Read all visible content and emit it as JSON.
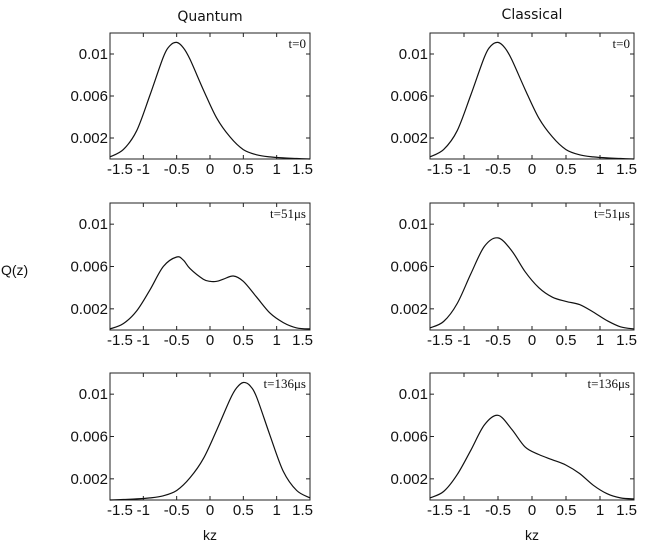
{
  "figure": {
    "ylabel": "Q(z)",
    "xlabel": "kz",
    "column_titles": [
      "Quantum",
      "Classical"
    ]
  },
  "chart_data": [
    {
      "type": "line",
      "column_title": "Quantum",
      "annotation": "t=0",
      "xlim": [
        -1.5,
        1.5
      ],
      "ylim": [
        0,
        0.012
      ],
      "xticks": [
        -1.5,
        -1,
        -0.5,
        0,
        0.5,
        1,
        1.5
      ],
      "xtick_labels": [
        "-1.5",
        "-1",
        "-0.5",
        "0",
        "0.5",
        "1",
        "1.5"
      ],
      "yticks": [
        0.002,
        0.006,
        0.01
      ],
      "ytick_labels": [
        "0.002",
        "0.006",
        "0.01"
      ],
      "x": [
        -1.5,
        -1.3,
        -1.1,
        -0.9,
        -0.7,
        -0.6,
        -0.5,
        -0.4,
        -0.3,
        -0.1,
        0.1,
        0.3,
        0.5,
        0.7,
        0.9,
        1.1,
        1.3,
        1.5
      ],
      "y": [
        0.0002,
        0.0009,
        0.0027,
        0.0061,
        0.0097,
        0.0108,
        0.0111,
        0.0106,
        0.0095,
        0.0066,
        0.0039,
        0.0021,
        0.0009,
        0.0004,
        0.0002,
        0.0001,
        5e-05,
        0.0
      ]
    },
    {
      "type": "line",
      "column_title": "Classical",
      "annotation": "t=0",
      "xlim": [
        -1.5,
        1.5
      ],
      "ylim": [
        0,
        0.012
      ],
      "xticks": [
        -1.5,
        -1,
        -0.5,
        0,
        0.5,
        1,
        1.5
      ],
      "xtick_labels": [
        "-1.5",
        "-1",
        "-0.5",
        "0",
        "0.5",
        "1",
        "1.5"
      ],
      "yticks": [
        0.002,
        0.006,
        0.01
      ],
      "ytick_labels": [
        "0.002",
        "0.006",
        "0.01"
      ],
      "x": [
        -1.5,
        -1.3,
        -1.1,
        -0.9,
        -0.7,
        -0.6,
        -0.5,
        -0.4,
        -0.3,
        -0.1,
        0.1,
        0.3,
        0.5,
        0.7,
        0.9,
        1.1,
        1.3,
        1.5
      ],
      "y": [
        0.0002,
        0.0009,
        0.0027,
        0.0061,
        0.0097,
        0.0108,
        0.0111,
        0.0106,
        0.0095,
        0.0066,
        0.0039,
        0.0021,
        0.0009,
        0.0004,
        0.0002,
        0.0001,
        5e-05,
        0.0
      ]
    },
    {
      "type": "line",
      "column_title": "Quantum",
      "annotation": "t=51μs",
      "xlim": [
        -1.5,
        1.5
      ],
      "ylim": [
        0,
        0.012
      ],
      "xticks": [
        -1.5,
        -1,
        -0.5,
        0,
        0.5,
        1,
        1.5
      ],
      "xtick_labels": [
        "-1.5",
        "-1",
        "-0.5",
        "0",
        "0.5",
        "1",
        "1.5"
      ],
      "yticks": [
        0.002,
        0.006,
        0.01
      ],
      "ytick_labels": [
        "0.002",
        "0.006",
        "0.01"
      ],
      "x": [
        -1.5,
        -1.3,
        -1.1,
        -0.9,
        -0.7,
        -0.5,
        -0.4,
        -0.3,
        -0.1,
        0.0,
        0.1,
        0.2,
        0.35,
        0.5,
        0.7,
        0.9,
        1.1,
        1.3,
        1.5
      ],
      "y": [
        0.0001,
        0.0006,
        0.0018,
        0.0038,
        0.006,
        0.0069,
        0.0066,
        0.0058,
        0.0048,
        0.0046,
        0.0046,
        0.0048,
        0.0051,
        0.0046,
        0.0031,
        0.0016,
        0.0007,
        0.0002,
        0.0001
      ]
    },
    {
      "type": "line",
      "column_title": "Classical",
      "annotation": "t=51μs",
      "xlim": [
        -1.5,
        1.5
      ],
      "ylim": [
        0,
        0.012
      ],
      "xticks": [
        -1.5,
        -1,
        -0.5,
        0,
        0.5,
        1,
        1.5
      ],
      "xtick_labels": [
        "-1.5",
        "-1",
        "-0.5",
        "0",
        "0.5",
        "1",
        "1.5"
      ],
      "yticks": [
        0.002,
        0.006,
        0.01
      ],
      "ytick_labels": [
        "0.002",
        "0.006",
        "0.01"
      ],
      "x": [
        -1.5,
        -1.3,
        -1.1,
        -0.9,
        -0.7,
        -0.5,
        -0.3,
        -0.1,
        0.1,
        0.3,
        0.5,
        0.7,
        0.9,
        1.1,
        1.3,
        1.5
      ],
      "y": [
        0.0002,
        0.0008,
        0.0025,
        0.0053,
        0.0079,
        0.0087,
        0.0075,
        0.0055,
        0.004,
        0.0031,
        0.0027,
        0.0024,
        0.0017,
        0.0009,
        0.0003,
        0.0001
      ]
    },
    {
      "type": "line",
      "column_title": "Quantum",
      "annotation": "t=136μs",
      "xlim": [
        -1.5,
        1.5
      ],
      "ylim": [
        0,
        0.012
      ],
      "xticks": [
        -1.5,
        -1,
        -0.5,
        0,
        0.5,
        1,
        1.5
      ],
      "xtick_labels": [
        "-1.5",
        "-1",
        "-0.5",
        "0",
        "0.5",
        "1",
        "1.5"
      ],
      "yticks": [
        0.002,
        0.006,
        0.01
      ],
      "ytick_labels": [
        "0.002",
        "0.006",
        "0.01"
      ],
      "x": [
        -1.5,
        -1.3,
        -1.1,
        -0.9,
        -0.7,
        -0.5,
        -0.3,
        -0.1,
        0.1,
        0.3,
        0.4,
        0.5,
        0.6,
        0.7,
        0.9,
        1.1,
        1.3,
        1.5
      ],
      "y": [
        0.0,
        5e-05,
        0.0001,
        0.0002,
        0.0004,
        0.0009,
        0.0021,
        0.0039,
        0.0066,
        0.0095,
        0.0106,
        0.0111,
        0.0108,
        0.0097,
        0.0061,
        0.0027,
        0.0009,
        0.0002
      ]
    },
    {
      "type": "line",
      "column_title": "Classical",
      "annotation": "t=136μs",
      "xlim": [
        -1.5,
        1.5
      ],
      "ylim": [
        0,
        0.012
      ],
      "xticks": [
        -1.5,
        -1,
        -0.5,
        0,
        0.5,
        1,
        1.5
      ],
      "xtick_labels": [
        "-1.5",
        "-1",
        "-0.5",
        "0",
        "0.5",
        "1",
        "1.5"
      ],
      "yticks": [
        0.002,
        0.006,
        0.01
      ],
      "ytick_labels": [
        "0.002",
        "0.006",
        "0.01"
      ],
      "x": [
        -1.5,
        -1.3,
        -1.1,
        -0.9,
        -0.7,
        -0.5,
        -0.3,
        -0.1,
        0.1,
        0.3,
        0.5,
        0.7,
        0.9,
        1.1,
        1.3,
        1.5
      ],
      "y": [
        0.0002,
        0.0008,
        0.0024,
        0.0047,
        0.0071,
        0.008,
        0.0067,
        0.005,
        0.0043,
        0.0038,
        0.0033,
        0.0025,
        0.0014,
        0.0006,
        0.0002,
        0.0001
      ]
    }
  ]
}
